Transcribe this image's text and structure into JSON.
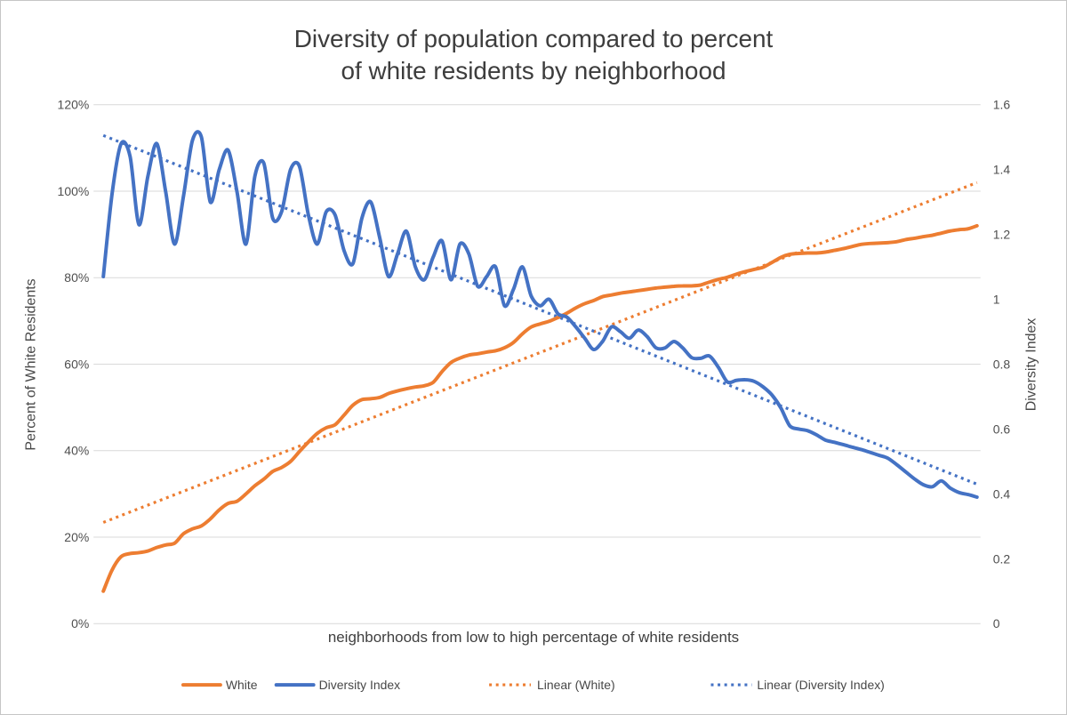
{
  "title": {
    "line1": "Diversity of population compared to percent",
    "line2": "of white residents by neighborhood"
  },
  "left_axis": {
    "title": "Percent of White Residents",
    "ticks": [
      "0%",
      "20%",
      "40%",
      "60%",
      "80%",
      "100%",
      "120%"
    ],
    "min": 0,
    "max": 120
  },
  "right_axis": {
    "title": "Diversity Index",
    "ticks": [
      "0",
      "0.2",
      "0.4",
      "0.6",
      "0.8",
      "1",
      "1.2",
      "1.4",
      "1.6"
    ],
    "min": 0,
    "max": 1.6
  },
  "x_axis": {
    "label": "neighborhoods from low to high percentage of white residents"
  },
  "legend": {
    "position": "bottom",
    "items": [
      {
        "label": "White",
        "style": "solid",
        "color": "#ED7D31"
      },
      {
        "label": "Diversity Index",
        "style": "solid",
        "color": "#4472C4"
      },
      {
        "label": "Linear (White)",
        "style": "dotted",
        "color": "#ED7D31"
      },
      {
        "label": "Linear (Diversity Index)",
        "style": "dotted",
        "color": "#4472C4"
      }
    ]
  },
  "colors": {
    "orange": "#ED7D31",
    "blue": "#4472C4",
    "gridline": "#d9d9d9",
    "text_dark": "#3d3d3d",
    "text_gray": "#4f4f4f"
  },
  "chart_data": {
    "type": "line",
    "title": "Diversity of population compared to percent of white residents by neighborhood",
    "xlabel": "neighborhoods from low to high percentage of white residents",
    "x_description": "neighborhood rank, 1 = lowest percent white, 99 = highest",
    "n_points": 99,
    "grid": true,
    "legend_position": "bottom",
    "left_axis_range": [
      0,
      120
    ],
    "right_axis_range": [
      0,
      1.6
    ],
    "series": [
      {
        "name": "White",
        "axis": "left",
        "unit": "%",
        "style": "solid",
        "color": "#ED7D31",
        "values": [
          7.5,
          12.5,
          15.5,
          16.2,
          16.4,
          16.8,
          17.6,
          18.2,
          18.6,
          20.8,
          21.9,
          22.6,
          24.2,
          26.3,
          27.8,
          28.3,
          30.0,
          31.9,
          33.4,
          35.2,
          36.1,
          37.5,
          39.8,
          42.0,
          44.0,
          45.3,
          46.0,
          48.2,
          50.5,
          51.8,
          52.0,
          52.3,
          53.2,
          53.8,
          54.3,
          54.7,
          55.0,
          55.8,
          58.3,
          60.4,
          61.4,
          62.1,
          62.4,
          62.8,
          63.1,
          63.8,
          65.0,
          67.0,
          68.6,
          69.3,
          69.9,
          70.8,
          71.8,
          73.0,
          74.0,
          74.7,
          75.6,
          76.0,
          76.4,
          76.7,
          77.0,
          77.3,
          77.6,
          77.8,
          78.0,
          78.1,
          78.1,
          78.3,
          79.0,
          79.6,
          80.1,
          80.8,
          81.4,
          81.9,
          82.4,
          83.5,
          84.7,
          85.4,
          85.6,
          85.7,
          85.7,
          85.9,
          86.3,
          86.7,
          87.2,
          87.7,
          87.9,
          88.0,
          88.1,
          88.3,
          88.8,
          89.1,
          89.5,
          89.8,
          90.3,
          90.8,
          91.1,
          91.3,
          92.0
        ]
      },
      {
        "name": "Diversity Index",
        "axis": "right",
        "unit": "index",
        "style": "solid",
        "color": "#4472C4",
        "values": [
          1.07,
          1.33,
          1.48,
          1.44,
          1.23,
          1.38,
          1.48,
          1.33,
          1.17,
          1.32,
          1.49,
          1.5,
          1.3,
          1.4,
          1.46,
          1.33,
          1.17,
          1.38,
          1.42,
          1.25,
          1.27,
          1.4,
          1.41,
          1.26,
          1.17,
          1.27,
          1.26,
          1.15,
          1.11,
          1.25,
          1.3,
          1.19,
          1.07,
          1.14,
          1.21,
          1.1,
          1.06,
          1.13,
          1.18,
          1.06,
          1.17,
          1.14,
          1.04,
          1.07,
          1.1,
          0.98,
          1.03,
          1.1,
          1.01,
          0.98,
          1.0,
          0.955,
          0.945,
          0.915,
          0.88,
          0.845,
          0.87,
          0.915,
          0.9,
          0.88,
          0.905,
          0.885,
          0.85,
          0.85,
          0.87,
          0.85,
          0.82,
          0.818,
          0.825,
          0.79,
          0.745,
          0.75,
          0.752,
          0.747,
          0.73,
          0.705,
          0.665,
          0.61,
          0.6,
          0.595,
          0.582,
          0.566,
          0.559,
          0.552,
          0.544,
          0.537,
          0.528,
          0.519,
          0.51,
          0.49,
          0.468,
          0.446,
          0.428,
          0.422,
          0.44,
          0.418,
          0.404,
          0.398,
          0.39
        ]
      },
      {
        "name": "Linear (White)",
        "axis": "left",
        "unit": "%",
        "style": "dotted",
        "color": "#ED7D31",
        "trend": {
          "start": 23.4,
          "end": 102.0
        }
      },
      {
        "name": "Linear (Diversity Index)",
        "axis": "right",
        "unit": "index",
        "style": "dotted",
        "color": "#4472C4",
        "trend": {
          "start": 1.505,
          "end": 0.43
        }
      }
    ]
  }
}
